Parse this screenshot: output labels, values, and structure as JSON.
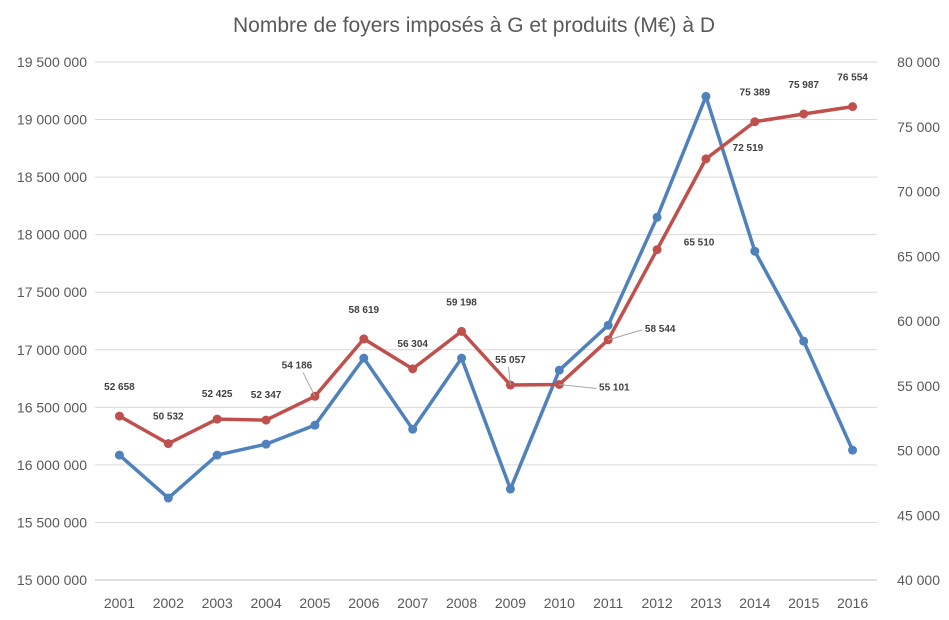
{
  "chart_data": {
    "type": "line",
    "title": "Nombre de foyers imposés à G et produits (M€) à D",
    "categories": [
      "2001",
      "2002",
      "2003",
      "2004",
      "2005",
      "2006",
      "2007",
      "2008",
      "2009",
      "2010",
      "2011",
      "2012",
      "2013",
      "2014",
      "2015",
      "2016"
    ],
    "y_left": {
      "min": 15000000,
      "max": 19500000,
      "step": 500000,
      "ticks": [
        "15 000 000",
        "15 500 000",
        "16 000 000",
        "16 500 000",
        "17 000 000",
        "17 500 000",
        "18 000 000",
        "18 500 000",
        "19 000 000",
        "19 500 000"
      ]
    },
    "y_right": {
      "min": 40000,
      "max": 80000,
      "step": 5000,
      "ticks": [
        "40 000",
        "45 000",
        "50 000",
        "55 000",
        "60 000",
        "65 000",
        "70 000",
        "75 000",
        "80 000"
      ]
    },
    "grid": true,
    "series": [
      {
        "name": "Nombre de foyers imposés",
        "axis": "left",
        "color": "#4F81BD",
        "values": [
          16085000,
          15712000,
          16085000,
          16180000,
          16345000,
          16927000,
          16310000,
          16927000,
          15790000,
          16823000,
          17213000,
          18151000,
          19201000,
          17856000,
          17075000,
          16128000
        ]
      },
      {
        "name": "Produits (M€)",
        "axis": "right",
        "color": "#C0504D",
        "values": [
          52658,
          50532,
          52425,
          52347,
          54186,
          58619,
          56304,
          59198,
          55057,
          55101,
          58544,
          65510,
          72519,
          75389,
          75987,
          76554
        ],
        "labels": [
          "52 658",
          "50 532",
          "52 425",
          "52 347",
          "54 186",
          "58 619",
          "56 304",
          "59 198",
          "55 057",
          "55 101",
          "58 544",
          "65 510",
          "72 519",
          "75 389",
          "75 987",
          "76 554"
        ]
      }
    ]
  }
}
